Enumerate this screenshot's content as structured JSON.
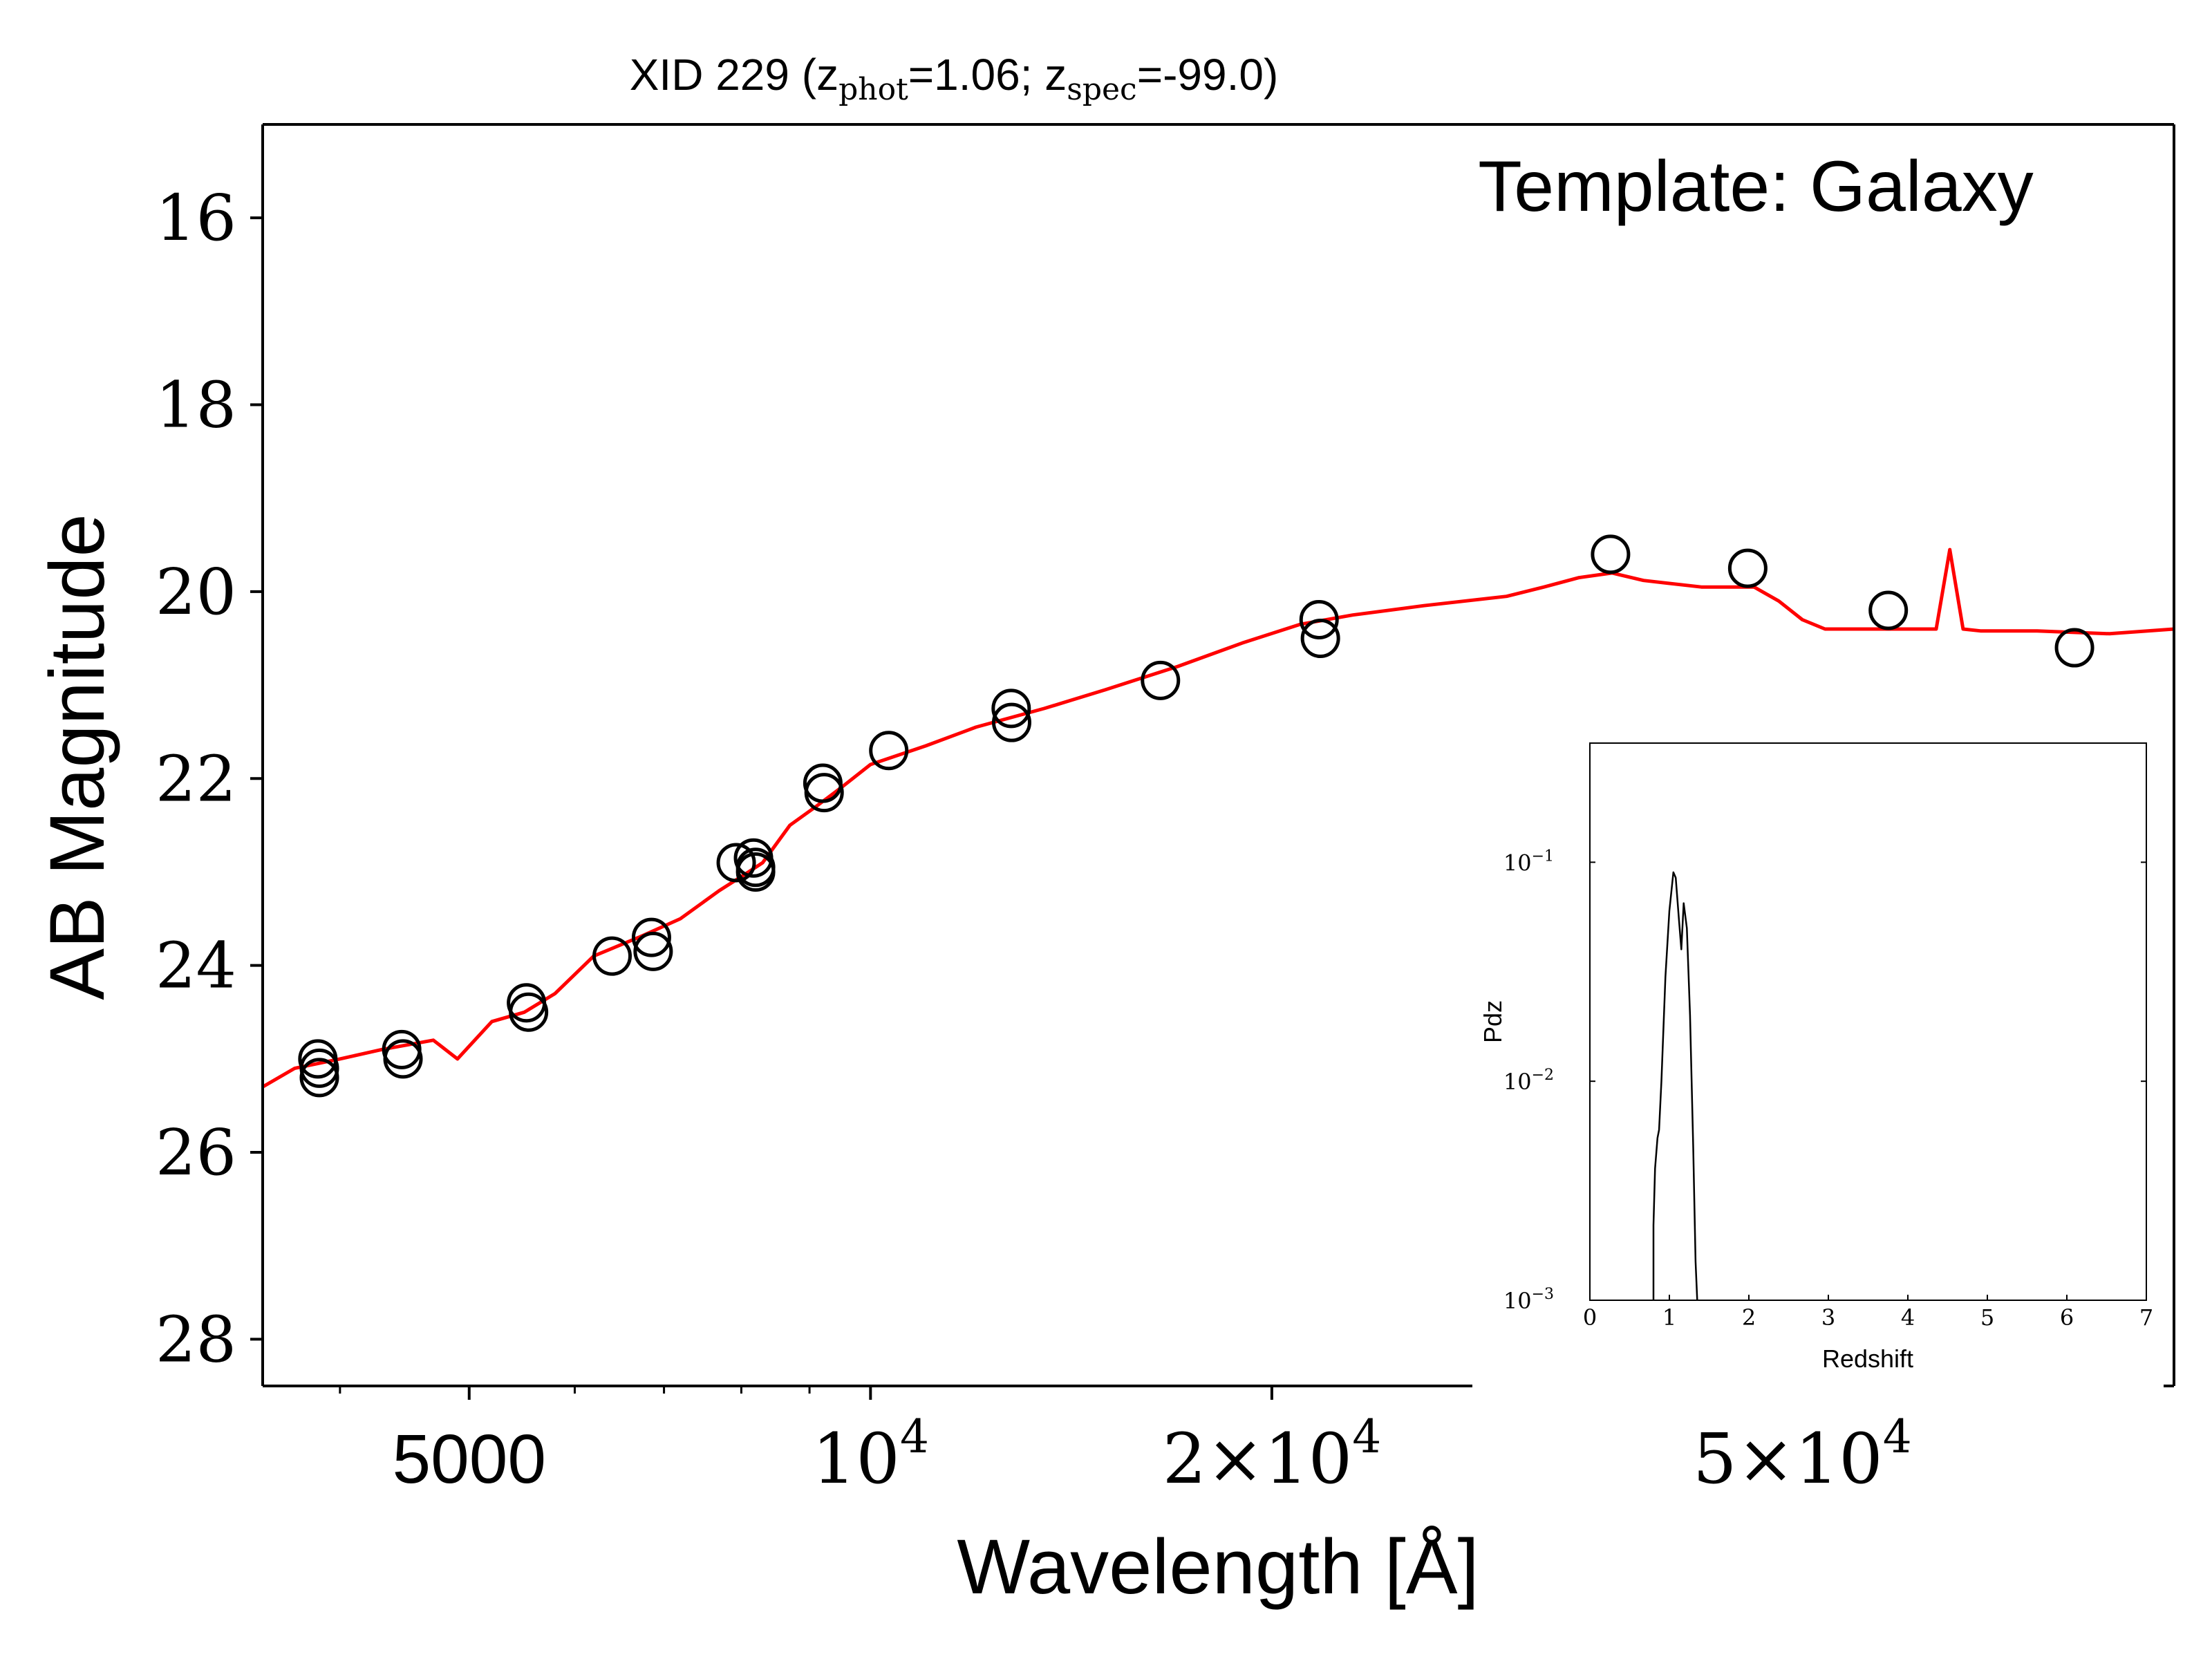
{
  "chart_data": [
    {
      "type": "scatter",
      "title": "XID 229 (z",
      "title_parts": {
        "prefix": "XID 229 (z",
        "phot_sub": "phot",
        "phot_val": "=1.06; z",
        "spec_sub": "spec",
        "spec_val": "=-99.0)"
      },
      "annotation": "Template: Galaxy",
      "xlabel": "Wavelength [Å]",
      "ylabel": "AB Magnitude",
      "x_scale": "log",
      "xlim": [
        3500,
        95000
      ],
      "ylim": [
        28.5,
        15
      ],
      "y_inverted": true,
      "x_ticks": [
        {
          "value": 5000,
          "base": "5000",
          "exp": ""
        },
        {
          "value": 10000,
          "base": "10",
          "exp": "4"
        },
        {
          "value": 20000,
          "base": "2×10",
          "exp": "4"
        },
        {
          "value": 50000,
          "base": "5×10",
          "exp": "4"
        }
      ],
      "x_minor_ticks": [
        4000,
        6000,
        7000,
        8000,
        9000,
        30000,
        40000,
        60000,
        70000,
        80000,
        90000
      ],
      "y_ticks": [
        "16",
        "18",
        "20",
        "22",
        "24",
        "26",
        "28"
      ],
      "grid": false,
      "series": [
        {
          "kind": "photometry",
          "marker": "open-circle",
          "color": "#000000",
          "x": [
            3850,
            3860,
            3860,
            4450,
            4460,
            5520,
            5540,
            6400,
            6850,
            6870,
            7930,
            8170,
            8200,
            8200,
            9210,
            9230,
            10320,
            12750,
            12760,
            16500,
            21700,
            21750,
            35900,
            45500,
            58000,
            80000
          ],
          "y": [
            25.0,
            25.2,
            25.1,
            24.9,
            25.0,
            24.4,
            24.5,
            23.9,
            23.7,
            23.85,
            22.9,
            22.85,
            22.95,
            23.0,
            22.05,
            22.15,
            21.7,
            21.25,
            21.4,
            20.95,
            20.3,
            20.5,
            19.6,
            19.75,
            20.2,
            20.6
          ]
        },
        {
          "kind": "template",
          "color": "#ff0000",
          "x": [
            3500,
            3700,
            4000,
            4300,
            4700,
            4900,
            5200,
            5500,
            5800,
            6200,
            6700,
            7200,
            7700,
            8100,
            8300,
            8700,
            9100,
            9500,
            10000,
            11000,
            12000,
            13500,
            15000,
            17000,
            19000,
            21000,
            23000,
            26000,
            30000,
            32000,
            34000,
            36000,
            38000,
            42000,
            46000,
            48000,
            50000,
            52000,
            56000,
            63000,
            64500,
            66000,
            68000,
            75000,
            85000,
            95000
          ],
          "y": [
            25.3,
            25.1,
            25.0,
            24.9,
            24.8,
            25.0,
            24.6,
            24.5,
            24.3,
            23.9,
            23.7,
            23.5,
            23.2,
            23.0,
            22.9,
            22.5,
            22.3,
            22.1,
            21.85,
            21.65,
            21.45,
            21.25,
            21.05,
            20.8,
            20.55,
            20.35,
            20.25,
            20.15,
            20.05,
            19.95,
            19.85,
            19.8,
            19.88,
            19.95,
            19.95,
            20.1,
            20.3,
            20.4,
            20.4,
            20.4,
            19.55,
            20.4,
            20.42,
            20.42,
            20.45,
            20.4
          ]
        }
      ]
    },
    {
      "type": "line",
      "role": "inset",
      "xlabel": "Redshift",
      "ylabel": "Pdz",
      "x_scale": "linear",
      "y_scale": "log",
      "xlim": [
        0,
        7
      ],
      "ylim": [
        0.001,
        0.35
      ],
      "x_ticks": [
        "0",
        "1",
        "2",
        "3",
        "4",
        "5",
        "6",
        "7"
      ],
      "y_ticks": [
        {
          "value": 0.1,
          "base": "10",
          "exp": "−1"
        },
        {
          "value": 0.01,
          "base": "10",
          "exp": "−2"
        },
        {
          "value": 0.001,
          "base": "10",
          "exp": "−3"
        }
      ],
      "series": [
        {
          "color": "#000000",
          "x": [
            0.8,
            0.8,
            0.82,
            0.85,
            0.87,
            0.9,
            0.95,
            1.0,
            1.05,
            1.08,
            1.12,
            1.15,
            1.18,
            1.22,
            1.26,
            1.3,
            1.33,
            1.35,
            1.35
          ],
          "y": [
            0.001,
            0.0022,
            0.004,
            0.0055,
            0.006,
            0.01,
            0.03,
            0.06,
            0.09,
            0.085,
            0.055,
            0.04,
            0.065,
            0.05,
            0.02,
            0.005,
            0.0015,
            0.001,
            0.001
          ]
        }
      ]
    }
  ]
}
